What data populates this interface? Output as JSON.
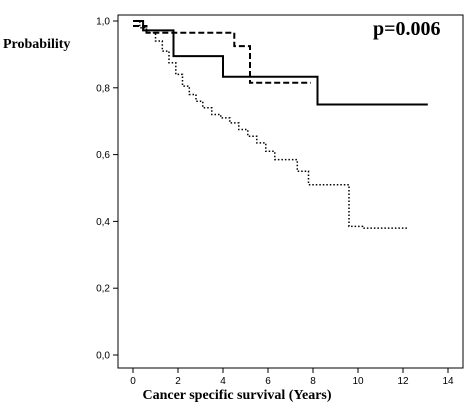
{
  "chart_data": {
    "type": "line",
    "step": true,
    "ylabel": "Probability",
    "xlabel": "Cancer specific survival (Years)",
    "annotation": "p=0.006",
    "xlim": [
      0,
      14
    ],
    "ylim": [
      0,
      1
    ],
    "x_ticks": [
      0,
      2,
      4,
      6,
      8,
      10,
      12,
      14
    ],
    "x_tick_labels": [
      "0",
      "2",
      "4",
      "6",
      "8",
      "10",
      "12",
      "14"
    ],
    "y_ticks": [
      0,
      0.2,
      0.4,
      0.6,
      0.8,
      1.0
    ],
    "y_tick_labels": [
      "0,0",
      "0,2",
      "0,4",
      "0,6",
      "0,8",
      "1,0"
    ],
    "grid": false,
    "series": [
      {
        "style": "solid",
        "x": [
          0,
          0.45,
          1.8,
          4.0,
          8.2,
          13.1
        ],
        "y": [
          1.0,
          0.972,
          0.895,
          0.833,
          0.75,
          0.75
        ]
      },
      {
        "style": "dashed",
        "x": [
          0,
          0.6,
          4.5,
          5.2,
          7.9
        ],
        "y": [
          0.985,
          0.965,
          0.925,
          0.815,
          0.815
        ]
      },
      {
        "style": "dotted",
        "x": [
          0,
          0.3,
          0.6,
          1.0,
          1.3,
          1.6,
          1.9,
          2.2,
          2.5,
          2.8,
          3.1,
          3.5,
          3.9,
          4.3,
          4.7,
          5.1,
          5.5,
          5.9,
          6.3,
          6.8,
          7.3,
          7.8,
          8.3,
          8.8,
          9.2,
          9.6,
          10.2,
          10.8,
          11.5,
          12.2
        ],
        "y": [
          1.0,
          0.98,
          0.965,
          0.94,
          0.91,
          0.875,
          0.84,
          0.805,
          0.78,
          0.76,
          0.74,
          0.72,
          0.71,
          0.695,
          0.675,
          0.655,
          0.635,
          0.61,
          0.585,
          0.585,
          0.55,
          0.51,
          0.51,
          0.51,
          0.51,
          0.385,
          0.38,
          0.38,
          0.38,
          0.38
        ]
      }
    ]
  }
}
